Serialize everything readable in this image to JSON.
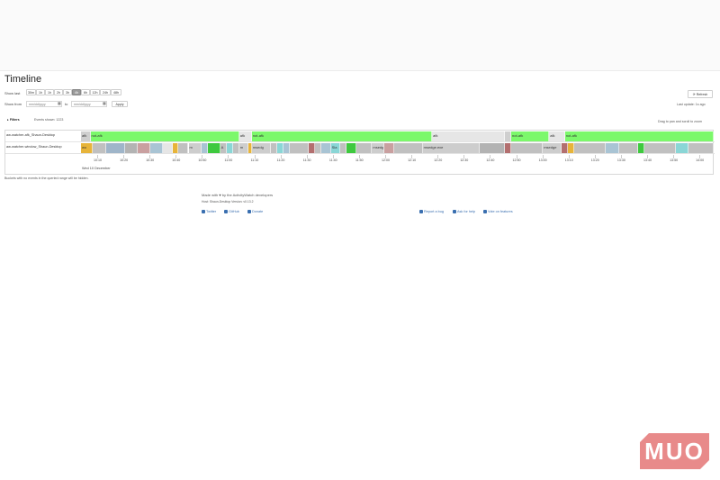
{
  "page": {
    "title": "Timeline",
    "show_last_label": "Show last",
    "range_buttons": [
      "30m",
      "1h",
      "1h",
      "2h",
      "3h",
      "4h",
      "6h",
      "12h",
      "24h",
      "48h"
    ],
    "active_range_index": 5,
    "show_from_label": "Show from",
    "from_placeholder": "mm/dd/yyyy",
    "to_label": "to",
    "to_placeholder": "mm/dd/yyyy",
    "apply_label": "Apply",
    "refresh_label": "Refresh",
    "last_update": "Last update: 1s ago",
    "filters_label": "Filters",
    "events_shown": "Events shown: 1223",
    "drag_hint": "Drag to pan and scroll to zoom",
    "note": "Buckets with no events in the queried range will be hidden."
  },
  "timeline": {
    "rows": [
      {
        "label": "aw-watcher-afk_Shaun-Desktop",
        "segments": [
          {
            "label": "afk",
            "color": "#cfcfcf",
            "start": 0,
            "end": 1.5
          },
          {
            "label": "not-afk",
            "color": "#7cf86b",
            "start": 1.5,
            "end": 25
          },
          {
            "label": "afk",
            "color": "#e6e6e6",
            "start": 25,
            "end": 27
          },
          {
            "label": "not-afk",
            "color": "#7cf86b",
            "start": 27,
            "end": 55.5
          },
          {
            "label": "afk",
            "color": "#e6e6e6",
            "start": 55.5,
            "end": 67
          },
          {
            "label": "",
            "color": "#cfcfcf",
            "start": 67,
            "end": 68
          },
          {
            "label": "not-afk",
            "color": "#7cf86b",
            "start": 68,
            "end": 74
          },
          {
            "label": "afk",
            "color": "#e6e6e6",
            "start": 74,
            "end": 76.5
          },
          {
            "label": "not-afk",
            "color": "#7cf86b",
            "start": 76.5,
            "end": 100
          }
        ]
      },
      {
        "label": "aw-watcher-window_Shaun-Desktop",
        "segments": [
          {
            "label": "wo",
            "color": "#e7b43a",
            "start": 0,
            "end": 1.8
          },
          {
            "label": "",
            "color": "#c0c0c0",
            "start": 1.8,
            "end": 4
          },
          {
            "label": "",
            "color": "#9fb5c9",
            "start": 4,
            "end": 7
          },
          {
            "label": "",
            "color": "#b3b3b3",
            "start": 7,
            "end": 9
          },
          {
            "label": "",
            "color": "#c9a0a0",
            "start": 9,
            "end": 11
          },
          {
            "label": "",
            "color": "#a9c4d4",
            "start": 11,
            "end": 13
          },
          {
            "label": "",
            "color": "#e6e6e6",
            "start": 13,
            "end": 14.5
          },
          {
            "label": "",
            "color": "#e7b43a",
            "start": 14.5,
            "end": 15.4
          },
          {
            "label": "",
            "color": "#c0c0c0",
            "start": 15.4,
            "end": 17
          },
          {
            "label": "m",
            "color": "#cdcdcd",
            "start": 17,
            "end": 19
          },
          {
            "label": "",
            "color": "#a9c4d4",
            "start": 19,
            "end": 20
          },
          {
            "label": "",
            "color": "#3ec93e",
            "start": 20,
            "end": 22
          },
          {
            "label": "A",
            "color": "#c0c0c0",
            "start": 22,
            "end": 23
          },
          {
            "label": "",
            "color": "#8ad6d6",
            "start": 23,
            "end": 24
          },
          {
            "label": "",
            "color": "#c0c0c0",
            "start": 24,
            "end": 25
          },
          {
            "label": "m",
            "color": "#cdcdcd",
            "start": 25,
            "end": 26.5
          },
          {
            "label": "",
            "color": "#e7b43a",
            "start": 26.5,
            "end": 27
          },
          {
            "label": "msedg",
            "color": "#cdcdcd",
            "start": 27,
            "end": 30
          },
          {
            "label": "",
            "color": "#c0c0c0",
            "start": 30,
            "end": 31
          },
          {
            "label": "",
            "color": "#8ad6d6",
            "start": 31,
            "end": 32
          },
          {
            "label": "",
            "color": "#a9c4d4",
            "start": 32,
            "end": 33
          },
          {
            "label": "",
            "color": "#c0c0c0",
            "start": 33,
            "end": 36
          },
          {
            "label": "",
            "color": "#b36f6f",
            "start": 36,
            "end": 37
          },
          {
            "label": "",
            "color": "#c0c0c0",
            "start": 37,
            "end": 38
          },
          {
            "label": "",
            "color": "#a9c4d4",
            "start": 38,
            "end": 39.5
          },
          {
            "label": "Sla",
            "color": "#8ad6d6",
            "start": 39.5,
            "end": 41
          },
          {
            "label": "",
            "color": "#c0c0c0",
            "start": 41,
            "end": 42
          },
          {
            "label": "",
            "color": "#3ec93e",
            "start": 42,
            "end": 43.5
          },
          {
            "label": "",
            "color": "#c0c0c0",
            "start": 43.5,
            "end": 46
          },
          {
            "label": "msedg",
            "color": "#cdcdcd",
            "start": 46,
            "end": 48
          },
          {
            "label": "",
            "color": "#c9a0a0",
            "start": 48,
            "end": 49.5
          },
          {
            "label": "",
            "color": "#c0c0c0",
            "start": 49.5,
            "end": 54
          },
          {
            "label": "msedge.exe",
            "color": "#cdcdcd",
            "start": 54,
            "end": 63
          },
          {
            "label": "",
            "color": "#b3b3b3",
            "start": 63,
            "end": 67
          },
          {
            "label": "",
            "color": "#b36f6f",
            "start": 67,
            "end": 68
          },
          {
            "label": "",
            "color": "#c0c0c0",
            "start": 68,
            "end": 73
          },
          {
            "label": "msedge",
            "color": "#cdcdcd",
            "start": 73,
            "end": 76
          },
          {
            "label": "",
            "color": "#b36f6f",
            "start": 76,
            "end": 77
          },
          {
            "label": "",
            "color": "#e7b43a",
            "start": 77,
            "end": 78
          },
          {
            "label": "",
            "color": "#c0c0c0",
            "start": 78,
            "end": 83
          },
          {
            "label": "",
            "color": "#a9c4d4",
            "start": 83,
            "end": 85
          },
          {
            "label": "",
            "color": "#c0c0c0",
            "start": 85,
            "end": 88
          },
          {
            "label": "",
            "color": "#3ec93e",
            "start": 88,
            "end": 89
          },
          {
            "label": "",
            "color": "#c0c0c0",
            "start": 89,
            "end": 94
          },
          {
            "label": "",
            "color": "#8ad6d6",
            "start": 94,
            "end": 96
          },
          {
            "label": "",
            "color": "#c0c0c0",
            "start": 96,
            "end": 100
          }
        ]
      }
    ],
    "ticks": [
      "10:10",
      "10:20",
      "10:30",
      "10:40",
      "10:50",
      "11:00",
      "11:10",
      "11:20",
      "11:30",
      "11:40",
      "11:50",
      "12:00",
      "12:10",
      "12:20",
      "12:30",
      "12:40",
      "12:50",
      "13:00",
      "13:10",
      "13:20",
      "13:30",
      "13:40",
      "13:50",
      "14:00"
    ],
    "date_label": "Wed 10 December"
  },
  "footer": {
    "made_with": "Made with ♥ by the ActivityWatch developers",
    "host": "Host: Shaun-Desktop   Version: v0.13.2",
    "links_left": [
      "Twitter",
      "GitHub",
      "Donate"
    ],
    "links_right": [
      "Report a bug",
      "Ask for help",
      "Vote on features"
    ]
  },
  "watermark": {
    "text": "MUO"
  }
}
